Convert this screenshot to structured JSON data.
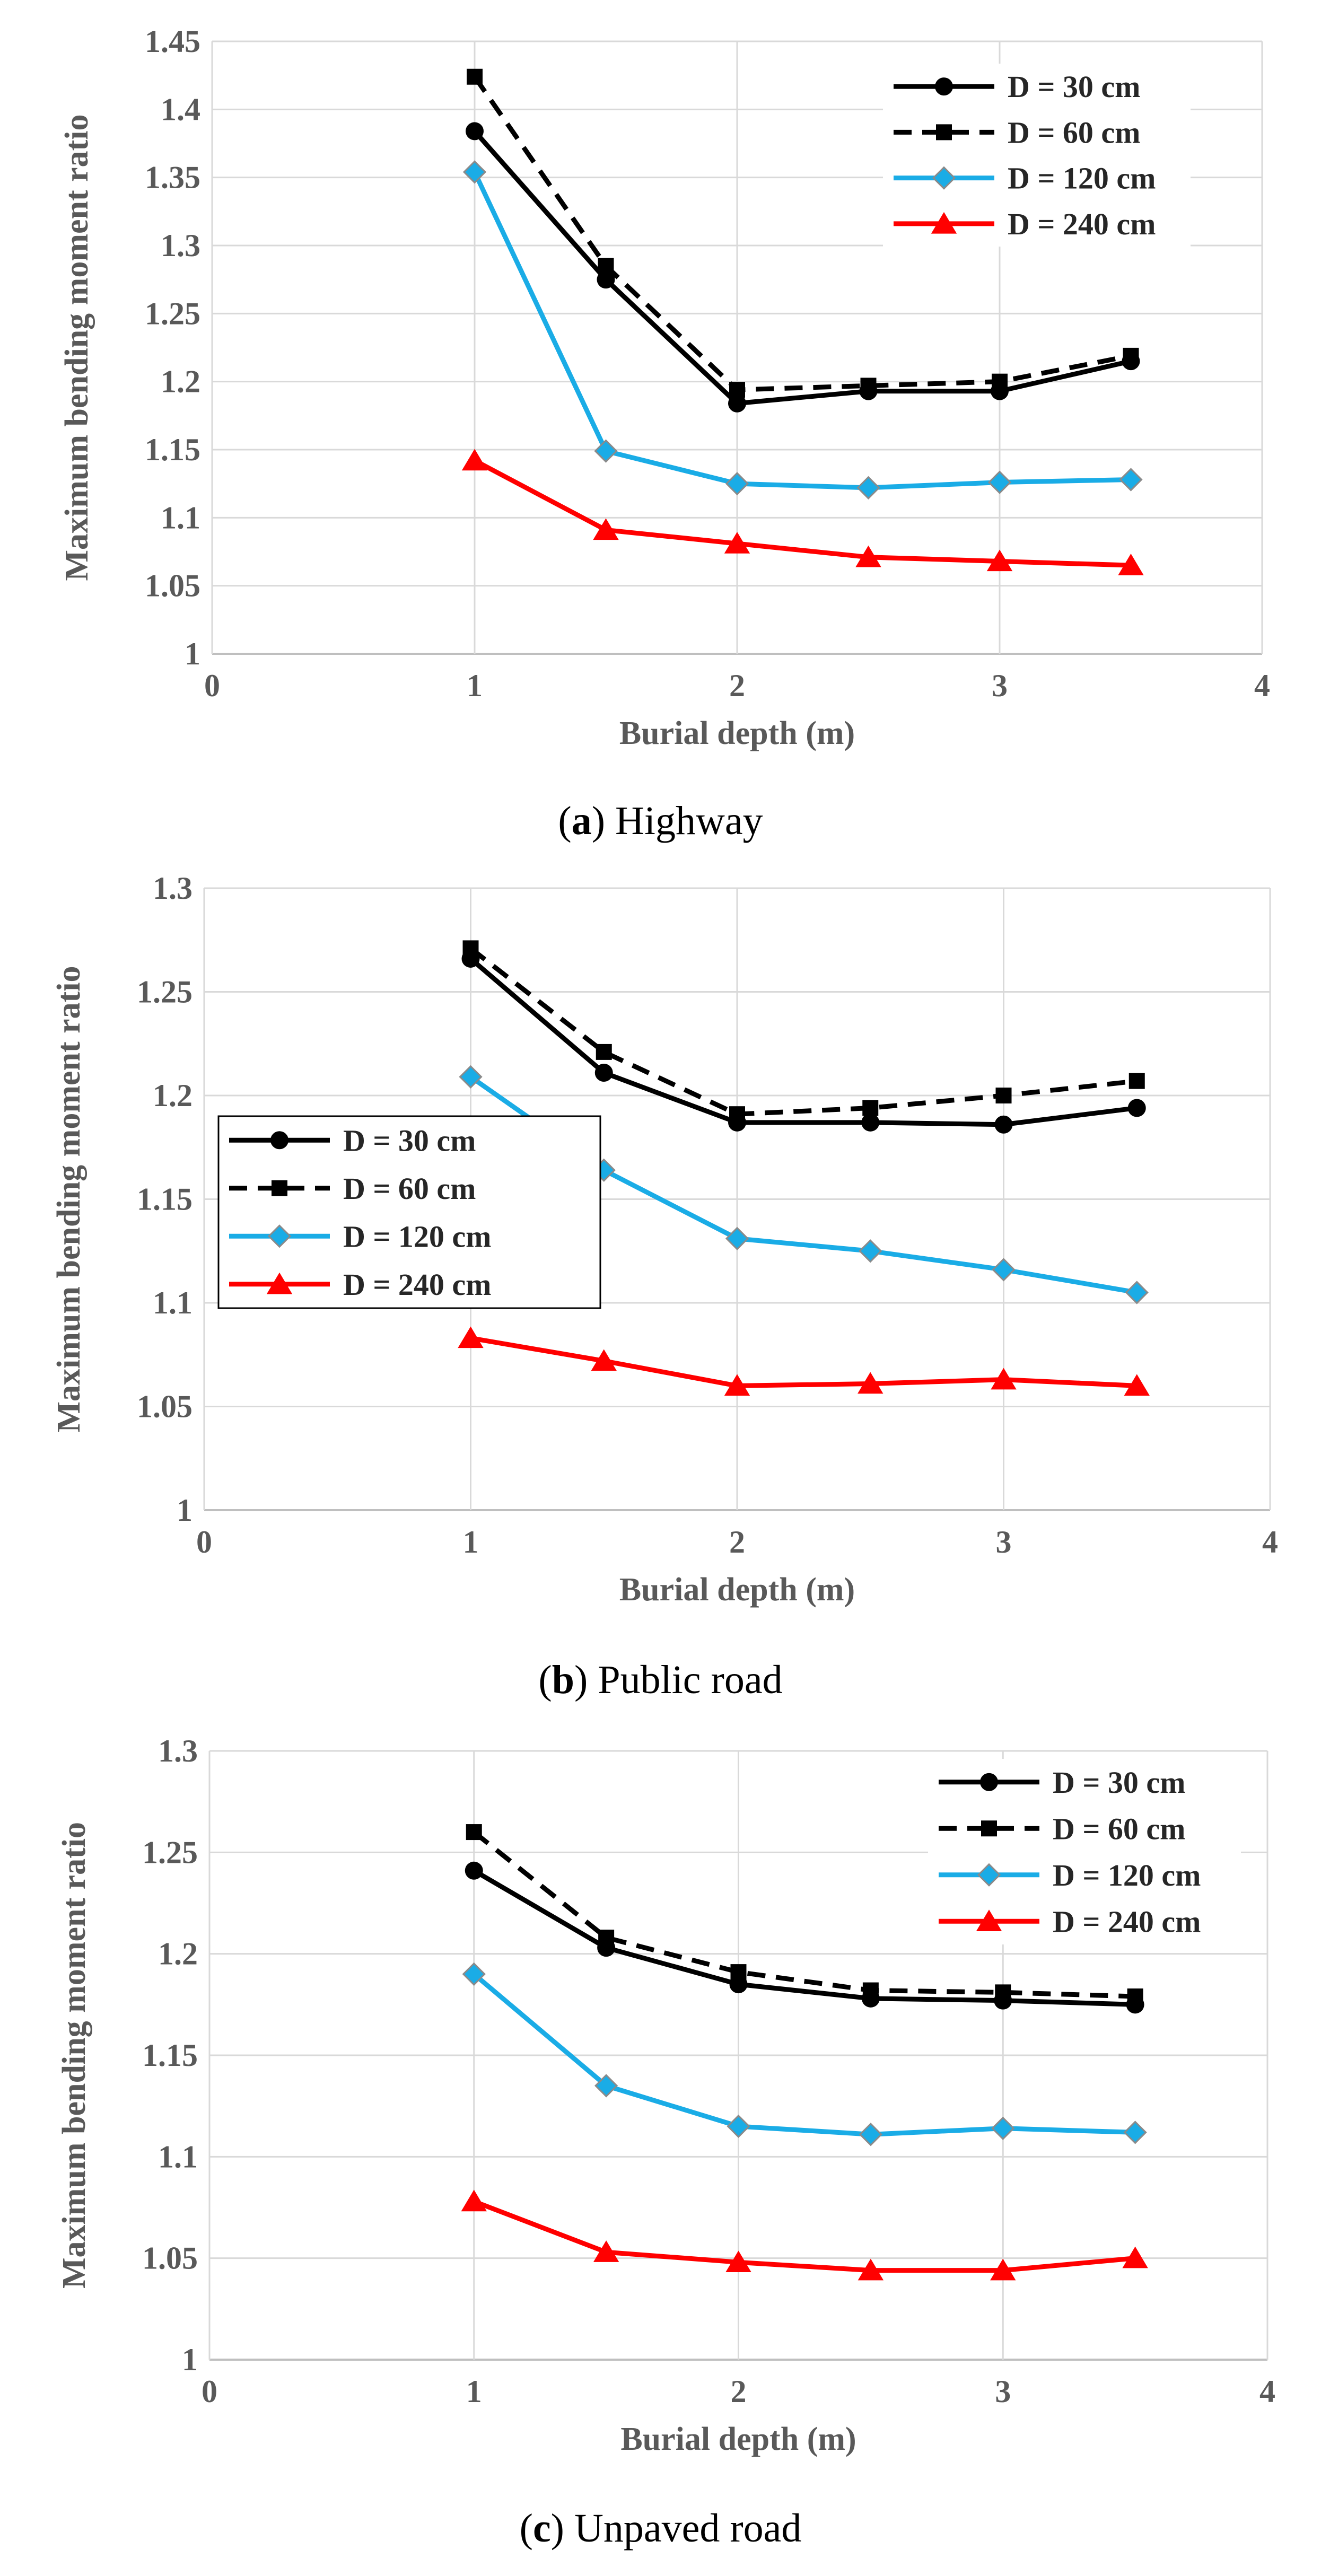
{
  "chart_data": [
    {
      "type": "line",
      "panel_letter": "a",
      "caption_text": "Highway",
      "xlabel": "Burial depth (m)",
      "ylabel": "Maximum bending moment ratio",
      "xlim": [
        0,
        4
      ],
      "ylim": [
        1,
        1.45
      ],
      "xticks": [
        0,
        1,
        2,
        3,
        4
      ],
      "xtick_labels": [
        "0",
        "1",
        "2",
        "3",
        "4"
      ],
      "yticks": [
        1,
        1.05,
        1.1,
        1.15,
        1.2,
        1.25,
        1.3,
        1.35,
        1.4,
        1.45
      ],
      "ytick_labels": [
        "1",
        "1.05",
        "1.1",
        "1.15",
        "1.2",
        "1.25",
        "1.3",
        "1.35",
        "1.4",
        "1.45"
      ],
      "grid": true,
      "legend_position": "top-right",
      "x": [
        1,
        1.5,
        2,
        2.5,
        3,
        3.5
      ],
      "series": [
        {
          "name": "D = 30 cm",
          "values": [
            1.384,
            1.275,
            1.184,
            1.193,
            1.193,
            1.215
          ],
          "color": "#000000",
          "dash": "solid",
          "marker": "circle"
        },
        {
          "name": "D = 60 cm",
          "values": [
            1.424,
            1.285,
            1.194,
            1.197,
            1.2,
            1.219
          ],
          "color": "#000000",
          "dash": "dashed",
          "marker": "square"
        },
        {
          "name": "D = 120 cm",
          "values": [
            1.354,
            1.149,
            1.125,
            1.122,
            1.126,
            1.128
          ],
          "color": "#1aace6",
          "dash": "solid",
          "marker": "diamond"
        },
        {
          "name": "D = 240 cm",
          "values": [
            1.142,
            1.091,
            1.081,
            1.071,
            1.068,
            1.065
          ],
          "color": "#ff0000",
          "dash": "solid",
          "marker": "triangle"
        }
      ]
    },
    {
      "type": "line",
      "panel_letter": "b",
      "caption_text": "Public road",
      "xlabel": "Burial depth (m)",
      "ylabel": "Maximum bending moment ratio",
      "xlim": [
        0,
        4
      ],
      "ylim": [
        1,
        1.3
      ],
      "xticks": [
        0,
        1,
        2,
        3,
        4
      ],
      "xtick_labels": [
        "0",
        "1",
        "2",
        "3",
        "4"
      ],
      "yticks": [
        1,
        1.05,
        1.1,
        1.15,
        1.2,
        1.25,
        1.3
      ],
      "ytick_labels": [
        "1",
        "1.05",
        "1.1",
        "1.15",
        "1.2",
        "1.25",
        "1.3"
      ],
      "grid": true,
      "legend_position": "middle-left",
      "x": [
        1,
        1.5,
        2,
        2.5,
        3,
        3.5
      ],
      "series": [
        {
          "name": "D = 30 cm",
          "values": [
            1.266,
            1.211,
            1.187,
            1.187,
            1.186,
            1.194
          ],
          "color": "#000000",
          "dash": "solid",
          "marker": "circle"
        },
        {
          "name": "D = 60 cm",
          "values": [
            1.271,
            1.221,
            1.191,
            1.194,
            1.2,
            1.207
          ],
          "color": "#000000",
          "dash": "dashed",
          "marker": "square"
        },
        {
          "name": "D = 120 cm",
          "values": [
            1.209,
            1.164,
            1.131,
            1.125,
            1.116,
            1.105
          ],
          "color": "#1aace6",
          "dash": "solid",
          "marker": "diamond"
        },
        {
          "name": "D = 240 cm",
          "values": [
            1.083,
            1.072,
            1.06,
            1.061,
            1.063,
            1.06
          ],
          "color": "#ff0000",
          "dash": "solid",
          "marker": "triangle"
        }
      ]
    },
    {
      "type": "line",
      "panel_letter": "c",
      "caption_text": "Unpaved road",
      "xlabel": "Burial depth (m)",
      "ylabel": "Maximum bending moment ratio",
      "xlim": [
        0,
        4
      ],
      "ylim": [
        1,
        1.3
      ],
      "xticks": [
        0,
        1,
        2,
        3,
        4
      ],
      "xtick_labels": [
        "0",
        "1",
        "2",
        "3",
        "4"
      ],
      "yticks": [
        1,
        1.05,
        1.1,
        1.15,
        1.2,
        1.25,
        1.3
      ],
      "ytick_labels": [
        "1",
        "1.05",
        "1.1",
        "1.15",
        "1.2",
        "1.25",
        "1.3"
      ],
      "grid": true,
      "legend_position": "top-right",
      "x": [
        1,
        1.5,
        2,
        2.5,
        3,
        3.5
      ],
      "series": [
        {
          "name": "D = 30 cm",
          "values": [
            1.241,
            1.203,
            1.185,
            1.178,
            1.177,
            1.175
          ],
          "color": "#000000",
          "dash": "solid",
          "marker": "circle"
        },
        {
          "name": "D = 60 cm",
          "values": [
            1.26,
            1.208,
            1.191,
            1.182,
            1.181,
            1.179
          ],
          "color": "#000000",
          "dash": "dashed",
          "marker": "square"
        },
        {
          "name": "D = 120 cm",
          "values": [
            1.19,
            1.135,
            1.115,
            1.111,
            1.114,
            1.112
          ],
          "color": "#1aace6",
          "dash": "solid",
          "marker": "diamond"
        },
        {
          "name": "D = 240 cm",
          "values": [
            1.078,
            1.053,
            1.048,
            1.044,
            1.044,
            1.05
          ],
          "color": "#ff0000",
          "dash": "solid",
          "marker": "triangle"
        }
      ]
    }
  ]
}
